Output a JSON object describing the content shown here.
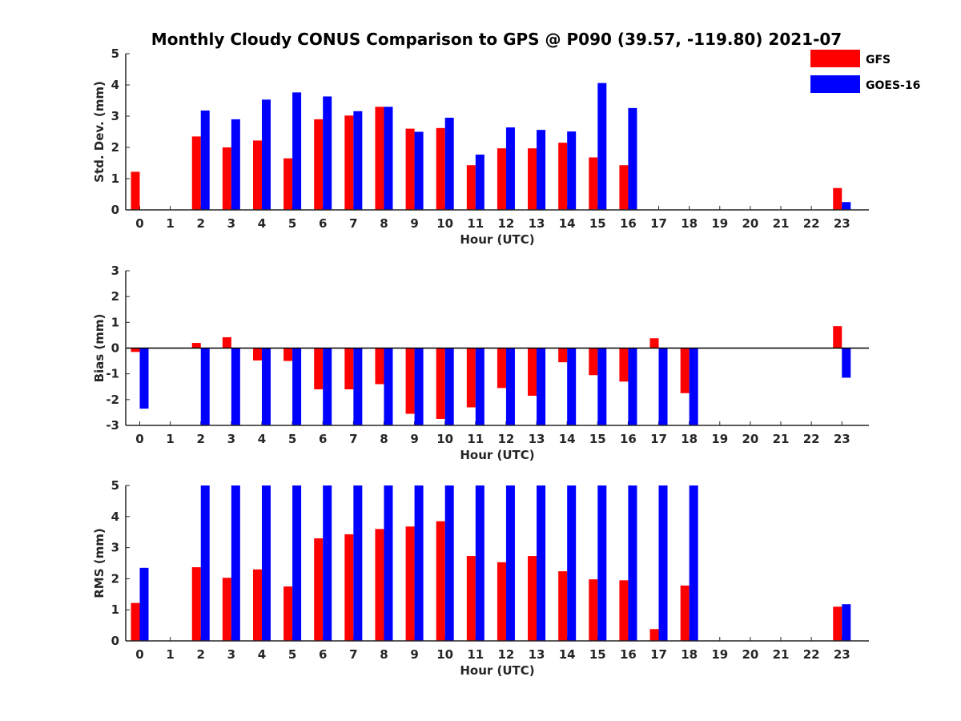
{
  "chart_data": {
    "title": "Monthly Cloudy CONUS Comparison to GPS @ P090 (39.57, -119.80) 2021-07",
    "colors": {
      "GFS": "#ff0000",
      "GOES-16": "#0000ff"
    },
    "legend": {
      "position": "top-right",
      "entries": [
        "GFS",
        "GOES-16"
      ]
    },
    "panels": [
      {
        "type": "bar",
        "name": "std",
        "ylabel": "Std. Dev. (mm)",
        "xlabel": "Hour (UTC)",
        "ylim": [
          0,
          5
        ],
        "yticks": [
          "0",
          "1",
          "2",
          "3",
          "4",
          "5"
        ],
        "categories": [
          "0",
          "1",
          "2",
          "3",
          "4",
          "5",
          "6",
          "7",
          "8",
          "9",
          "10",
          "11",
          "12",
          "13",
          "14",
          "15",
          "16",
          "17",
          "18",
          "19",
          "20",
          "21",
          "22",
          "23"
        ],
        "series": [
          {
            "name": "GFS",
            "values": [
              1.22,
              null,
              2.35,
              2.0,
              2.22,
              1.65,
              2.9,
              3.02,
              3.3,
              2.6,
              2.62,
              1.43,
              1.97,
              1.97,
              2.15,
              1.68,
              1.43,
              null,
              null,
              null,
              null,
              null,
              null,
              0.7
            ]
          },
          {
            "name": "GOES-16",
            "values": [
              null,
              null,
              3.18,
              2.9,
              3.53,
              3.76,
              3.63,
              3.16,
              3.3,
              2.5,
              2.95,
              1.77,
              2.64,
              2.56,
              2.51,
              4.06,
              3.26,
              null,
              null,
              null,
              null,
              null,
              null,
              0.25
            ]
          }
        ]
      },
      {
        "type": "bar",
        "name": "bias",
        "ylabel": "Bias (mm)",
        "xlabel": "Hour (UTC)",
        "ylim": [
          -3,
          3
        ],
        "yticks": [
          "-3",
          "-2",
          "-1",
          "0",
          "1",
          "2",
          "3"
        ],
        "categories": [
          "0",
          "1",
          "2",
          "3",
          "4",
          "5",
          "6",
          "7",
          "8",
          "9",
          "10",
          "11",
          "12",
          "13",
          "14",
          "15",
          "16",
          "17",
          "18",
          "19",
          "20",
          "21",
          "22",
          "23"
        ],
        "series": [
          {
            "name": "GFS",
            "values": [
              -0.15,
              null,
              0.2,
              0.42,
              -0.48,
              -0.5,
              -1.6,
              -1.6,
              -1.4,
              -2.55,
              -2.75,
              -2.3,
              -1.55,
              -1.85,
              -0.55,
              -1.05,
              -1.3,
              0.38,
              -1.75,
              null,
              null,
              null,
              null,
              0.85
            ]
          },
          {
            "name": "GOES-16",
            "values": [
              -2.35,
              null,
              -3.0,
              -3.0,
              -3.0,
              -3.0,
              -3.0,
              -3.0,
              -3.0,
              -3.0,
              -3.0,
              -3.0,
              -3.0,
              -3.0,
              -3.0,
              -3.0,
              -3.0,
              -3.0,
              -3.0,
              null,
              null,
              null,
              null,
              -1.15
            ]
          }
        ]
      },
      {
        "type": "bar",
        "name": "rms",
        "ylabel": "RMS (mm)",
        "xlabel": "Hour (UTC)",
        "ylim": [
          0,
          5
        ],
        "yticks": [
          "0",
          "1",
          "2",
          "3",
          "4",
          "5"
        ],
        "categories": [
          "0",
          "1",
          "2",
          "3",
          "4",
          "5",
          "6",
          "7",
          "8",
          "9",
          "10",
          "11",
          "12",
          "13",
          "14",
          "15",
          "16",
          "17",
          "18",
          "19",
          "20",
          "21",
          "22",
          "23"
        ],
        "series": [
          {
            "name": "GFS",
            "values": [
              1.22,
              null,
              2.37,
              2.03,
              2.3,
              1.75,
              3.3,
              3.43,
              3.6,
              3.68,
              3.85,
              2.73,
              2.53,
              2.73,
              2.24,
              1.98,
              1.95,
              0.38,
              1.78,
              null,
              null,
              null,
              null,
              1.1
            ]
          },
          {
            "name": "GOES-16",
            "values": [
              2.35,
              null,
              5.0,
              5.0,
              5.0,
              5.0,
              5.0,
              5.0,
              5.0,
              5.0,
              5.0,
              5.0,
              5.0,
              5.0,
              5.0,
              5.0,
              5.0,
              5.0,
              5.0,
              null,
              null,
              null,
              null,
              1.18
            ]
          }
        ]
      }
    ]
  }
}
